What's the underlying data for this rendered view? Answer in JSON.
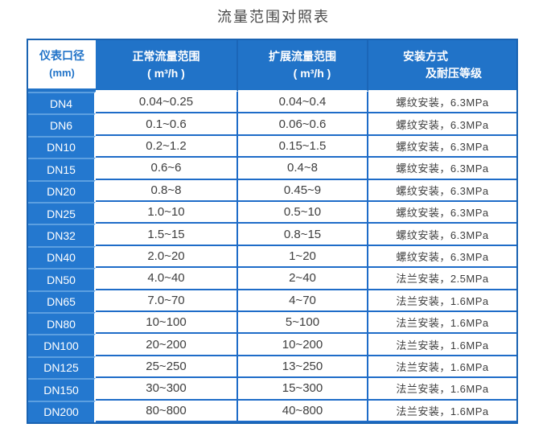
{
  "title": "流量范围对照表",
  "colors": {
    "primary_blue": "#2173c8",
    "dn_cell_blue": "#2478cf",
    "cell_border_blue": "#1e6cc8",
    "light_separator_blue": "#5c9fe0",
    "outer_border_blue": "#1a63b2",
    "header_text": "#ffffff",
    "body_text": "#3e3e3e",
    "title_text": "#4a4a4a"
  },
  "header": {
    "col1": {
      "line1": "仪表口径",
      "line2": "(mm)"
    },
    "col2": {
      "line1": "正常流量范围",
      "line2": "( m³/h )"
    },
    "col3": {
      "line1": "扩展流量范围",
      "line2": "( m³/h )"
    },
    "col4": {
      "line1": "安装方式",
      "line2": "及耐压等级"
    }
  },
  "chart_data": {
    "type": "table",
    "title": "流量范围对照表",
    "columns": [
      "仪表口径 (mm)",
      "正常流量范围 ( m³/h )",
      "扩展流量范围 ( m³/h )",
      "安装方式及耐压等级"
    ],
    "rows": [
      [
        "DN4",
        "0.04~0.25",
        "0.04~0.4",
        "螺纹安装，6.3MPa"
      ],
      [
        "DN6",
        "0.1~0.6",
        "0.06~0.6",
        "螺纹安装，6.3MPa"
      ],
      [
        "DN10",
        "0.2~1.2",
        "0.15~1.5",
        "螺纹安装，6.3MPa"
      ],
      [
        "DN15",
        "0.6~6",
        "0.4~8",
        "螺纹安装，6.3MPa"
      ],
      [
        "DN20",
        "0.8~8",
        "0.45~9",
        "螺纹安装，6.3MPa"
      ],
      [
        "DN25",
        "1.0~10",
        "0.5~10",
        "螺纹安装，6.3MPa"
      ],
      [
        "DN32",
        "1.5~15",
        "0.8~15",
        "螺纹安装，6.3MPa"
      ],
      [
        "DN40",
        "2.0~20",
        "1~20",
        "螺纹安装，6.3MPa"
      ],
      [
        "DN50",
        "4.0~40",
        "2~40",
        "法兰安装，2.5MPa"
      ],
      [
        "DN65",
        "7.0~70",
        "4~70",
        "法兰安装，1.6MPa"
      ],
      [
        "DN80",
        "10~100",
        "5~100",
        "法兰安装，1.6MPa"
      ],
      [
        "DN100",
        "20~200",
        "10~200",
        "法兰安装，1.6MPa"
      ],
      [
        "DN125",
        "25~250",
        "13~250",
        "法兰安装，1.6MPa"
      ],
      [
        "DN150",
        "30~300",
        "15~300",
        "法兰安装，1.6MPa"
      ],
      [
        "DN200",
        "80~800",
        "40~800",
        "法兰安装，1.6MPa"
      ]
    ]
  }
}
